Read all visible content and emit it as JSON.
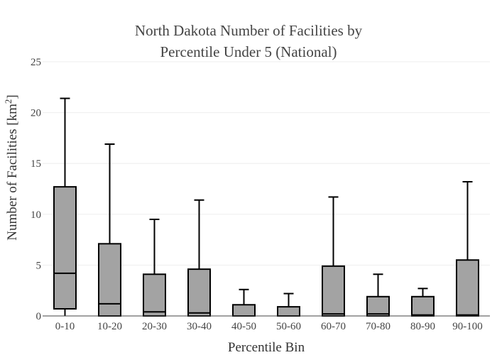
{
  "chart_data": {
    "type": "box",
    "title_line1": "North Dakota Number of Facilities by",
    "title_line2": "Percentile Under 5 (National)",
    "xlabel": "Percentile Bin",
    "ylabel_main": "Number of Facilities  [km",
    "ylabel_sup": "2",
    "ylabel_end": "]",
    "ylim": [
      0,
      25
    ],
    "yticks": [
      0,
      5,
      10,
      15,
      20,
      25
    ],
    "grid": true,
    "box_color": "#a3a3a3",
    "line_color": "#000000",
    "categories": [
      "0-10",
      "10-20",
      "20-30",
      "30-40",
      "40-50",
      "50-60",
      "60-70",
      "70-80",
      "80-90",
      "90-100"
    ],
    "boxes": [
      {
        "min": 0,
        "q1": 0.7,
        "median": 4.2,
        "q3": 12.7,
        "max": 21.4
      },
      {
        "min": 0,
        "q1": 0,
        "median": 1.2,
        "q3": 7.1,
        "max": 16.9
      },
      {
        "min": 0,
        "q1": 0,
        "median": 0.4,
        "q3": 4.1,
        "max": 9.5
      },
      {
        "min": 0,
        "q1": 0,
        "median": 0.3,
        "q3": 4.6,
        "max": 11.4
      },
      {
        "min": 0,
        "q1": 0,
        "median": 0,
        "q3": 1.1,
        "max": 2.6
      },
      {
        "min": 0,
        "q1": 0,
        "median": 0,
        "q3": 0.9,
        "max": 2.2
      },
      {
        "min": 0,
        "q1": 0,
        "median": 0.2,
        "q3": 4.9,
        "max": 11.7
      },
      {
        "min": 0,
        "q1": 0,
        "median": 0.2,
        "q3": 1.9,
        "max": 4.1
      },
      {
        "min": 0,
        "q1": 0,
        "median": 0.1,
        "q3": 1.9,
        "max": 2.7
      },
      {
        "min": 0,
        "q1": 0,
        "median": 0.1,
        "q3": 5.5,
        "max": 13.2
      }
    ]
  }
}
